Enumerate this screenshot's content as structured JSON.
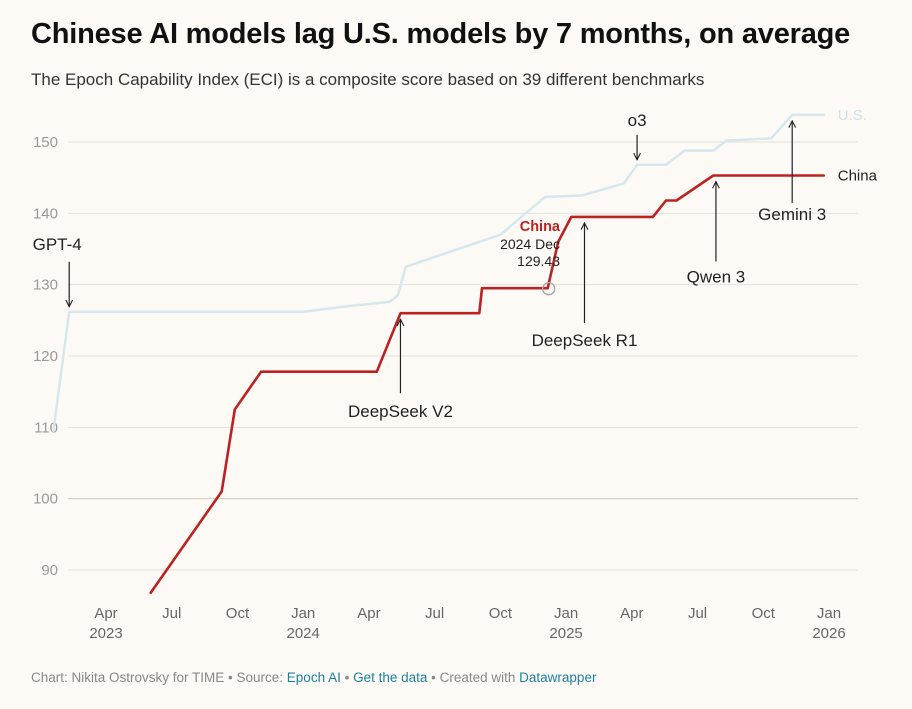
{
  "header": {
    "title": "Chinese AI models lag U.S. models by 7 months, on average",
    "subtitle": "The Epoch Capability Index (ECI) is a composite score based on 39 different benchmarks"
  },
  "footer": {
    "chart_prefix": "Chart: Nikita Ostrovsky for TIME • Source: ",
    "source_link": "Epoch AI",
    "sep1": " • ",
    "data_link": "Get the data",
    "created": " • Created with ",
    "dw_link": "Datawrapper"
  },
  "colors": {
    "us": "#d5e8ee",
    "us_label": "#cde2ea",
    "china": "#bb2222",
    "grid": "#e3e0da",
    "axis_text": "#999999",
    "annotation": "#222222"
  },
  "chart_data": {
    "type": "line",
    "title": "Chinese AI models lag U.S. models by 7 months, on average",
    "ylim": [
      86,
      155
    ],
    "xlim": [
      2023.0,
      2026.12
    ],
    "yticks": [
      90,
      100,
      110,
      120,
      130,
      140,
      150
    ],
    "xticks": [
      {
        "x": 2023.25,
        "label": "Apr",
        "year": "2023"
      },
      {
        "x": 2023.5,
        "label": "Jul",
        "year": ""
      },
      {
        "x": 2023.75,
        "label": "Oct",
        "year": ""
      },
      {
        "x": 2024.0,
        "label": "Jan",
        "year": "2024"
      },
      {
        "x": 2024.25,
        "label": "Apr",
        "year": ""
      },
      {
        "x": 2024.5,
        "label": "Jul",
        "year": ""
      },
      {
        "x": 2024.75,
        "label": "Oct",
        "year": ""
      },
      {
        "x": 2025.0,
        "label": "Jan",
        "year": "2025"
      },
      {
        "x": 2025.25,
        "label": "Apr",
        "year": ""
      },
      {
        "x": 2025.5,
        "label": "Jul",
        "year": ""
      },
      {
        "x": 2025.75,
        "label": "Oct",
        "year": ""
      },
      {
        "x": 2026.0,
        "label": "Jan",
        "year": "2026"
      }
    ],
    "series": [
      {
        "name": "U.S.",
        "label": "U.S.",
        "x": [
          2023.05,
          2023.11,
          2023.5,
          2024.0,
          2024.17,
          2024.33,
          2024.36,
          2024.39,
          2024.75,
          2024.92,
          2025.06,
          2025.22,
          2025.27,
          2025.38,
          2025.45,
          2025.56,
          2025.61,
          2025.78,
          2025.86,
          2025.98
        ],
        "values": [
          109.5,
          126.2,
          126.2,
          126.2,
          127.0,
          127.6,
          128.5,
          132.5,
          137.0,
          142.3,
          142.5,
          144.2,
          146.8,
          146.8,
          148.8,
          148.8,
          150.2,
          150.5,
          153.8,
          153.8
        ]
      },
      {
        "name": "China",
        "label": "China",
        "x": [
          2023.42,
          2023.69,
          2023.74,
          2023.84,
          2024.28,
          2024.37,
          2024.67,
          2024.68,
          2024.93,
          2024.97,
          2025.02,
          2025.33,
          2025.38,
          2025.42,
          2025.56,
          2025.98
        ],
        "values": [
          86.8,
          101.0,
          112.5,
          117.8,
          117.8,
          126.0,
          126.0,
          129.5,
          129.5,
          136.0,
          139.5,
          139.5,
          141.8,
          141.8,
          145.3,
          145.3
        ]
      }
    ],
    "annotations": [
      {
        "label": "GPT-4",
        "x": 2023.11,
        "value": 126.2,
        "dir": "up"
      },
      {
        "label": "DeepSeek V2",
        "x": 2024.37,
        "value": 126.0,
        "dir": "down"
      },
      {
        "label": "o3",
        "x": 2025.27,
        "value": 146.8,
        "dir": "up"
      },
      {
        "label": "DeepSeek R1",
        "x": 2025.07,
        "value": 139.5,
        "dir": "down"
      },
      {
        "label": "Qwen 3",
        "x": 2025.57,
        "value": 145.3,
        "dir": "down"
      },
      {
        "label": "Gemini 3",
        "x": 2025.86,
        "value": 153.8,
        "dir": "down"
      }
    ],
    "tooltip": {
      "series": "China",
      "date": "2024 Dec",
      "value": "129.43",
      "x": 2024.93,
      "y": 129.43
    }
  }
}
